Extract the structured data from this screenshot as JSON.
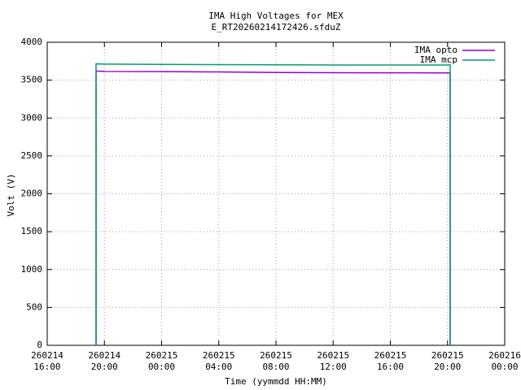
{
  "chart_data": {
    "type": "line",
    "title": "IMA High Voltages for MEX",
    "subtitle": "E_RT20260214172426.sfduZ",
    "x_label": "Time (yymmdd HH:MM)",
    "y_label": "Volt (V)",
    "x": [
      "260214 19:25",
      "260214 19:25",
      "260214 20:00",
      "260215 00:00",
      "260215 04:00",
      "260215 08:00",
      "260215 12:00",
      "260215 16:00",
      "260215 20:11",
      "260215 20:11"
    ],
    "series": [
      {
        "name": "IMA opto",
        "color": "#9400d3",
        "values": [
          0,
          3620,
          3615,
          3612,
          3608,
          3600,
          3598,
          3597,
          3595,
          0
        ]
      },
      {
        "name": "IMA mcp",
        "color": "#009e73",
        "values": [
          0,
          3715,
          3712,
          3708,
          3705,
          3702,
          3700,
          3700,
          3700,
          0
        ]
      }
    ],
    "xlim": [
      "260214 16:00",
      "260216 00:00"
    ],
    "xticks": [
      {
        "value": "260214 16:00",
        "label": "260214\n16:00"
      },
      {
        "value": "260214 20:00",
        "label": "260214\n20:00"
      },
      {
        "value": "260215 00:00",
        "label": "260215\n00:00"
      },
      {
        "value": "260215 04:00",
        "label": "260215\n04:00"
      },
      {
        "value": "260215 08:00",
        "label": "260215\n08:00"
      },
      {
        "value": "260215 12:00",
        "label": "260215\n12:00"
      },
      {
        "value": "260215 16:00",
        "label": "260215\n16:00"
      },
      {
        "value": "260215 20:00",
        "label": "260215\n20:00"
      },
      {
        "value": "260216 00:00",
        "label": "260216\n00:00"
      }
    ],
    "ylim": [
      0,
      4000
    ],
    "yticks": [
      0,
      500,
      1000,
      1500,
      2000,
      2500,
      3000,
      3500,
      4000
    ],
    "grid": true,
    "legend": "top-right"
  }
}
